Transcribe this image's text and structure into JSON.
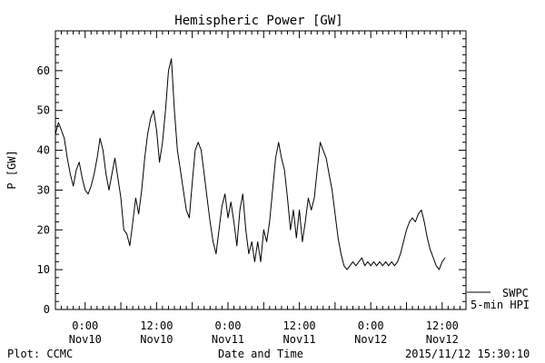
{
  "chart_data": {
    "type": "line",
    "title": "Hemispheric Power [GW]",
    "xlabel": "Date and Time",
    "ylabel": "P [GW]",
    "ylim": [
      0,
      70
    ],
    "yticks": [
      0,
      10,
      20,
      30,
      40,
      50,
      60
    ],
    "xlim": [
      "2015-11-09T19:00",
      "2015-11-12T16:00"
    ],
    "xticks": [
      {
        "t": "2015-11-10T00:00",
        "line1": "0:00",
        "line2": "Nov10"
      },
      {
        "t": "2015-11-10T12:00",
        "line1": "12:00",
        "line2": "Nov10"
      },
      {
        "t": "2015-11-11T00:00",
        "line1": "0:00",
        "line2": "Nov11"
      },
      {
        "t": "2015-11-11T12:00",
        "line1": "12:00",
        "line2": "Nov11"
      },
      {
        "t": "2015-11-12T00:00",
        "line1": "0:00",
        "line2": "Nov12"
      },
      {
        "t": "2015-11-12T12:00",
        "line1": "12:00",
        "line2": "Nov12"
      }
    ],
    "grid": false,
    "legend": {
      "position": "right",
      "line1": "SWPC",
      "line2": "5-min HPI"
    },
    "series": [
      {
        "name": "SWPC 5-min HPI",
        "color": "#000000",
        "points": [
          [
            "2015-11-09T19:00",
            44
          ],
          [
            "2015-11-09T19:30",
            47
          ],
          [
            "2015-11-09T20:00",
            45
          ],
          [
            "2015-11-09T20:30",
            43
          ],
          [
            "2015-11-09T21:00",
            38
          ],
          [
            "2015-11-09T21:30",
            34
          ],
          [
            "2015-11-09T22:00",
            31
          ],
          [
            "2015-11-09T22:30",
            35
          ],
          [
            "2015-11-09T23:00",
            37
          ],
          [
            "2015-11-09T23:30",
            33
          ],
          [
            "2015-11-10T00:00",
            30
          ],
          [
            "2015-11-10T00:30",
            29
          ],
          [
            "2015-11-10T01:00",
            31
          ],
          [
            "2015-11-10T01:30",
            34
          ],
          [
            "2015-11-10T02:00",
            38
          ],
          [
            "2015-11-10T02:30",
            43
          ],
          [
            "2015-11-10T03:00",
            40
          ],
          [
            "2015-11-10T03:30",
            34
          ],
          [
            "2015-11-10T04:00",
            30
          ],
          [
            "2015-11-10T04:30",
            34
          ],
          [
            "2015-11-10T05:00",
            38
          ],
          [
            "2015-11-10T05:30",
            33
          ],
          [
            "2015-11-10T06:00",
            28
          ],
          [
            "2015-11-10T06:30",
            20
          ],
          [
            "2015-11-10T07:00",
            19
          ],
          [
            "2015-11-10T07:30",
            16
          ],
          [
            "2015-11-10T08:00",
            22
          ],
          [
            "2015-11-10T08:30",
            28
          ],
          [
            "2015-11-10T09:00",
            24
          ],
          [
            "2015-11-10T09:30",
            30
          ],
          [
            "2015-11-10T10:00",
            38
          ],
          [
            "2015-11-10T10:30",
            44
          ],
          [
            "2015-11-10T11:00",
            48
          ],
          [
            "2015-11-10T11:30",
            50
          ],
          [
            "2015-11-10T12:00",
            45
          ],
          [
            "2015-11-10T12:30",
            37
          ],
          [
            "2015-11-10T13:00",
            42
          ],
          [
            "2015-11-10T13:30",
            50
          ],
          [
            "2015-11-10T14:00",
            60
          ],
          [
            "2015-11-10T14:30",
            63
          ],
          [
            "2015-11-10T15:00",
            50
          ],
          [
            "2015-11-10T15:30",
            40
          ],
          [
            "2015-11-10T16:00",
            35
          ],
          [
            "2015-11-10T16:30",
            30
          ],
          [
            "2015-11-10T17:00",
            25
          ],
          [
            "2015-11-10T17:30",
            23
          ],
          [
            "2015-11-10T18:00",
            32
          ],
          [
            "2015-11-10T18:30",
            40
          ],
          [
            "2015-11-10T19:00",
            42
          ],
          [
            "2015-11-10T19:30",
            40
          ],
          [
            "2015-11-10T20:00",
            34
          ],
          [
            "2015-11-10T20:30",
            28
          ],
          [
            "2015-11-10T21:00",
            22
          ],
          [
            "2015-11-10T21:30",
            17
          ],
          [
            "2015-11-10T22:00",
            14
          ],
          [
            "2015-11-10T22:30",
            20
          ],
          [
            "2015-11-10T23:00",
            26
          ],
          [
            "2015-11-10T23:30",
            29
          ],
          [
            "2015-11-11T00:00",
            23
          ],
          [
            "2015-11-11T00:30",
            27
          ],
          [
            "2015-11-11T01:00",
            22
          ],
          [
            "2015-11-11T01:30",
            16
          ],
          [
            "2015-11-11T02:00",
            25
          ],
          [
            "2015-11-11T02:30",
            29
          ],
          [
            "2015-11-11T03:00",
            20
          ],
          [
            "2015-11-11T03:30",
            14
          ],
          [
            "2015-11-11T04:00",
            17
          ],
          [
            "2015-11-11T04:30",
            12
          ],
          [
            "2015-11-11T05:00",
            17
          ],
          [
            "2015-11-11T05:30",
            12
          ],
          [
            "2015-11-11T06:00",
            20
          ],
          [
            "2015-11-11T06:30",
            17
          ],
          [
            "2015-11-11T07:00",
            22
          ],
          [
            "2015-11-11T07:30",
            30
          ],
          [
            "2015-11-11T08:00",
            38
          ],
          [
            "2015-11-11T08:30",
            42
          ],
          [
            "2015-11-11T09:00",
            38
          ],
          [
            "2015-11-11T09:30",
            35
          ],
          [
            "2015-11-11T10:00",
            28
          ],
          [
            "2015-11-11T10:30",
            20
          ],
          [
            "2015-11-11T11:00",
            25
          ],
          [
            "2015-11-11T11:30",
            18
          ],
          [
            "2015-11-11T12:00",
            25
          ],
          [
            "2015-11-11T12:30",
            17
          ],
          [
            "2015-11-11T13:00",
            22
          ],
          [
            "2015-11-11T13:30",
            28
          ],
          [
            "2015-11-11T14:00",
            25
          ],
          [
            "2015-11-11T14:30",
            28
          ],
          [
            "2015-11-11T15:00",
            35
          ],
          [
            "2015-11-11T15:30",
            42
          ],
          [
            "2015-11-11T16:00",
            40
          ],
          [
            "2015-11-11T16:30",
            38
          ],
          [
            "2015-11-11T17:00",
            34
          ],
          [
            "2015-11-11T17:30",
            30
          ],
          [
            "2015-11-11T18:00",
            24
          ],
          [
            "2015-11-11T18:30",
            18
          ],
          [
            "2015-11-11T19:00",
            14
          ],
          [
            "2015-11-11T19:30",
            11
          ],
          [
            "2015-11-11T20:00",
            10
          ],
          [
            "2015-11-11T20:30",
            11
          ],
          [
            "2015-11-11T21:00",
            12
          ],
          [
            "2015-11-11T21:30",
            11
          ],
          [
            "2015-11-11T22:00",
            12
          ],
          [
            "2015-11-11T22:30",
            13
          ],
          [
            "2015-11-11T23:00",
            11
          ],
          [
            "2015-11-11T23:30",
            12
          ],
          [
            "2015-11-12T00:00",
            11
          ],
          [
            "2015-11-12T00:30",
            12
          ],
          [
            "2015-11-12T01:00",
            11
          ],
          [
            "2015-11-12T01:30",
            12
          ],
          [
            "2015-11-12T02:00",
            11
          ],
          [
            "2015-11-12T02:30",
            12
          ],
          [
            "2015-11-12T03:00",
            11
          ],
          [
            "2015-11-12T03:30",
            12
          ],
          [
            "2015-11-12T04:00",
            11
          ],
          [
            "2015-11-12T04:30",
            12
          ],
          [
            "2015-11-12T05:00",
            14
          ],
          [
            "2015-11-12T05:30",
            17
          ],
          [
            "2015-11-12T06:00",
            20
          ],
          [
            "2015-11-12T06:30",
            22
          ],
          [
            "2015-11-12T07:00",
            23
          ],
          [
            "2015-11-12T07:30",
            22
          ],
          [
            "2015-11-12T08:00",
            24
          ],
          [
            "2015-11-12T08:30",
            25
          ],
          [
            "2015-11-12T09:00",
            22
          ],
          [
            "2015-11-12T09:30",
            18
          ],
          [
            "2015-11-12T10:00",
            15
          ],
          [
            "2015-11-12T10:30",
            13
          ],
          [
            "2015-11-12T11:00",
            11
          ],
          [
            "2015-11-12T11:30",
            10
          ],
          [
            "2015-11-12T12:00",
            12
          ],
          [
            "2015-11-12T12:30",
            13
          ]
        ]
      }
    ]
  },
  "footer": {
    "left": "Plot: CCMC",
    "right": "2015/11/12 15:30:10"
  }
}
